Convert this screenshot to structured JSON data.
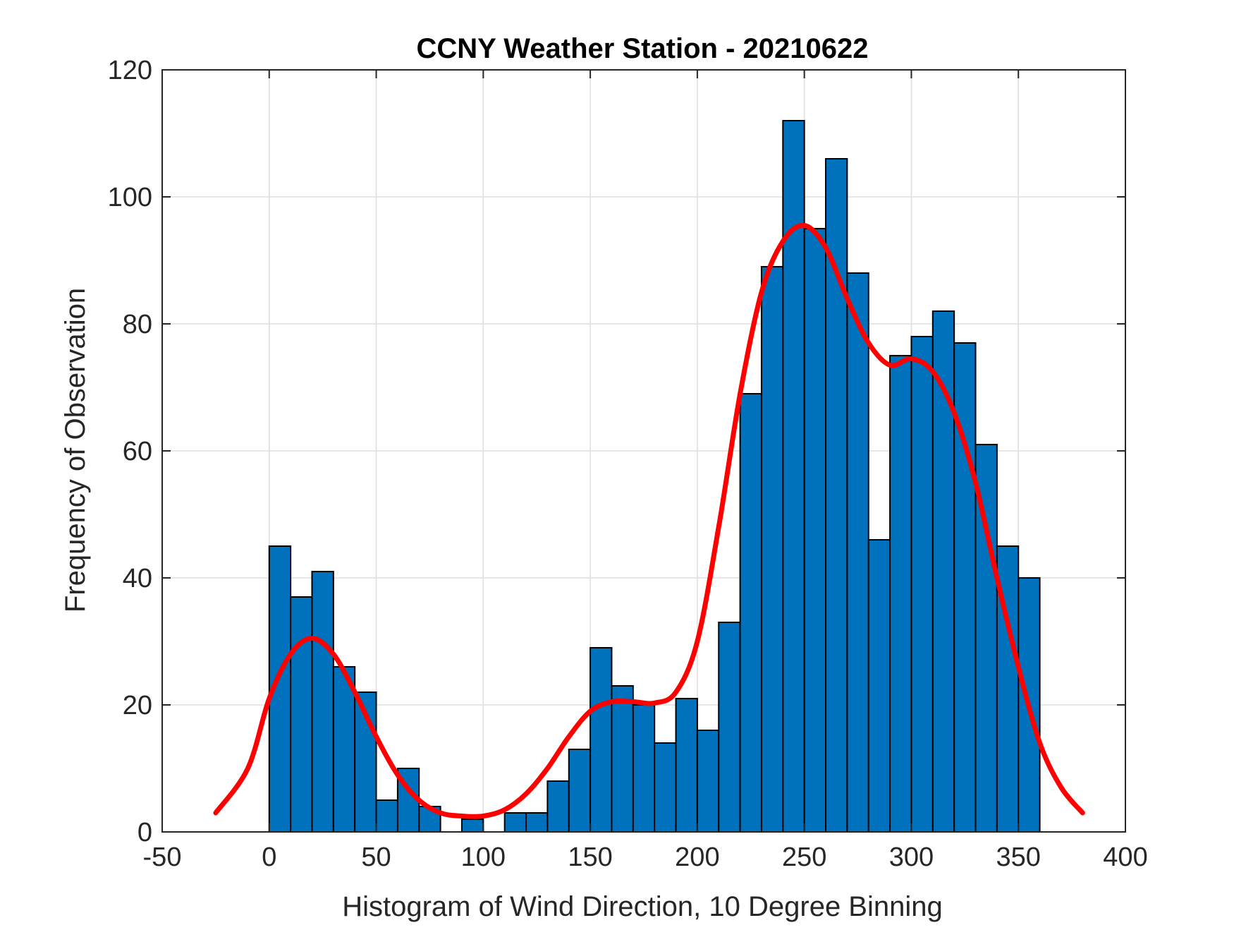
{
  "chart_data": {
    "type": "bar",
    "title": "CCNY Weather Station - 20210622",
    "xlabel": "Histogram of Wind Direction, 10 Degree Binning",
    "ylabel": "Frequency of Observation",
    "xlim": [
      -50,
      400
    ],
    "ylim": [
      0,
      120
    ],
    "xticks": [
      "-50",
      "0",
      "50",
      "100",
      "150",
      "200",
      "250",
      "300",
      "350",
      "400"
    ],
    "yticks": [
      "0",
      "20",
      "40",
      "60",
      "80",
      "100",
      "120"
    ],
    "grid": true,
    "bin_width": 10,
    "bins": [
      {
        "x0": 0,
        "x1": 10,
        "value": 45
      },
      {
        "x0": 10,
        "x1": 20,
        "value": 37
      },
      {
        "x0": 20,
        "x1": 30,
        "value": 41
      },
      {
        "x0": 30,
        "x1": 40,
        "value": 26
      },
      {
        "x0": 40,
        "x1": 50,
        "value": 22
      },
      {
        "x0": 50,
        "x1": 60,
        "value": 5
      },
      {
        "x0": 60,
        "x1": 70,
        "value": 10
      },
      {
        "x0": 70,
        "x1": 80,
        "value": 4
      },
      {
        "x0": 80,
        "x1": 90,
        "value": 0
      },
      {
        "x0": 90,
        "x1": 100,
        "value": 2
      },
      {
        "x0": 100,
        "x1": 110,
        "value": 0
      },
      {
        "x0": 110,
        "x1": 120,
        "value": 3
      },
      {
        "x0": 120,
        "x1": 130,
        "value": 3
      },
      {
        "x0": 130,
        "x1": 140,
        "value": 8
      },
      {
        "x0": 140,
        "x1": 150,
        "value": 13
      },
      {
        "x0": 150,
        "x1": 160,
        "value": 29
      },
      {
        "x0": 160,
        "x1": 170,
        "value": 23
      },
      {
        "x0": 170,
        "x1": 180,
        "value": 20
      },
      {
        "x0": 180,
        "x1": 190,
        "value": 14
      },
      {
        "x0": 190,
        "x1": 200,
        "value": 21
      },
      {
        "x0": 200,
        "x1": 210,
        "value": 16
      },
      {
        "x0": 210,
        "x1": 220,
        "value": 33
      },
      {
        "x0": 220,
        "x1": 230,
        "value": 69
      },
      {
        "x0": 230,
        "x1": 240,
        "value": 89
      },
      {
        "x0": 240,
        "x1": 250,
        "value": 112
      },
      {
        "x0": 250,
        "x1": 260,
        "value": 95
      },
      {
        "x0": 260,
        "x1": 270,
        "value": 106
      },
      {
        "x0": 270,
        "x1": 280,
        "value": 88
      },
      {
        "x0": 280,
        "x1": 290,
        "value": 46
      },
      {
        "x0": 290,
        "x1": 300,
        "value": 75
      },
      {
        "x0": 300,
        "x1": 310,
        "value": 78
      },
      {
        "x0": 310,
        "x1": 320,
        "value": 82
      },
      {
        "x0": 320,
        "x1": 330,
        "value": 77
      },
      {
        "x0": 330,
        "x1": 340,
        "value": 61
      },
      {
        "x0": 340,
        "x1": 350,
        "value": 45
      },
      {
        "x0": 350,
        "x1": 360,
        "value": 40
      }
    ],
    "curve": {
      "x": [
        -25,
        -10,
        0,
        10,
        20,
        30,
        40,
        50,
        60,
        70,
        80,
        90,
        100,
        110,
        120,
        130,
        140,
        150,
        160,
        170,
        180,
        190,
        200,
        210,
        220,
        230,
        240,
        250,
        260,
        270,
        280,
        290,
        300,
        310,
        320,
        330,
        340,
        350,
        360,
        370,
        380
      ],
      "y": [
        3,
        10,
        21,
        28,
        30.5,
        28,
        22,
        15,
        9,
        5,
        3,
        2.5,
        2.5,
        3.5,
        6,
        10,
        15,
        19,
        20.5,
        20.5,
        20.3,
        22,
        30,
        48,
        69,
        85,
        93,
        95.5,
        92,
        84,
        77,
        73.5,
        74.5,
        72.5,
        66,
        55,
        40,
        26,
        14,
        7,
        3
      ]
    },
    "colors": {
      "bar_fill": "#0072BD",
      "bar_edge": "#000000",
      "curve": "#FF0000",
      "grid": "#dfdfdf",
      "axis": "#262626"
    }
  }
}
